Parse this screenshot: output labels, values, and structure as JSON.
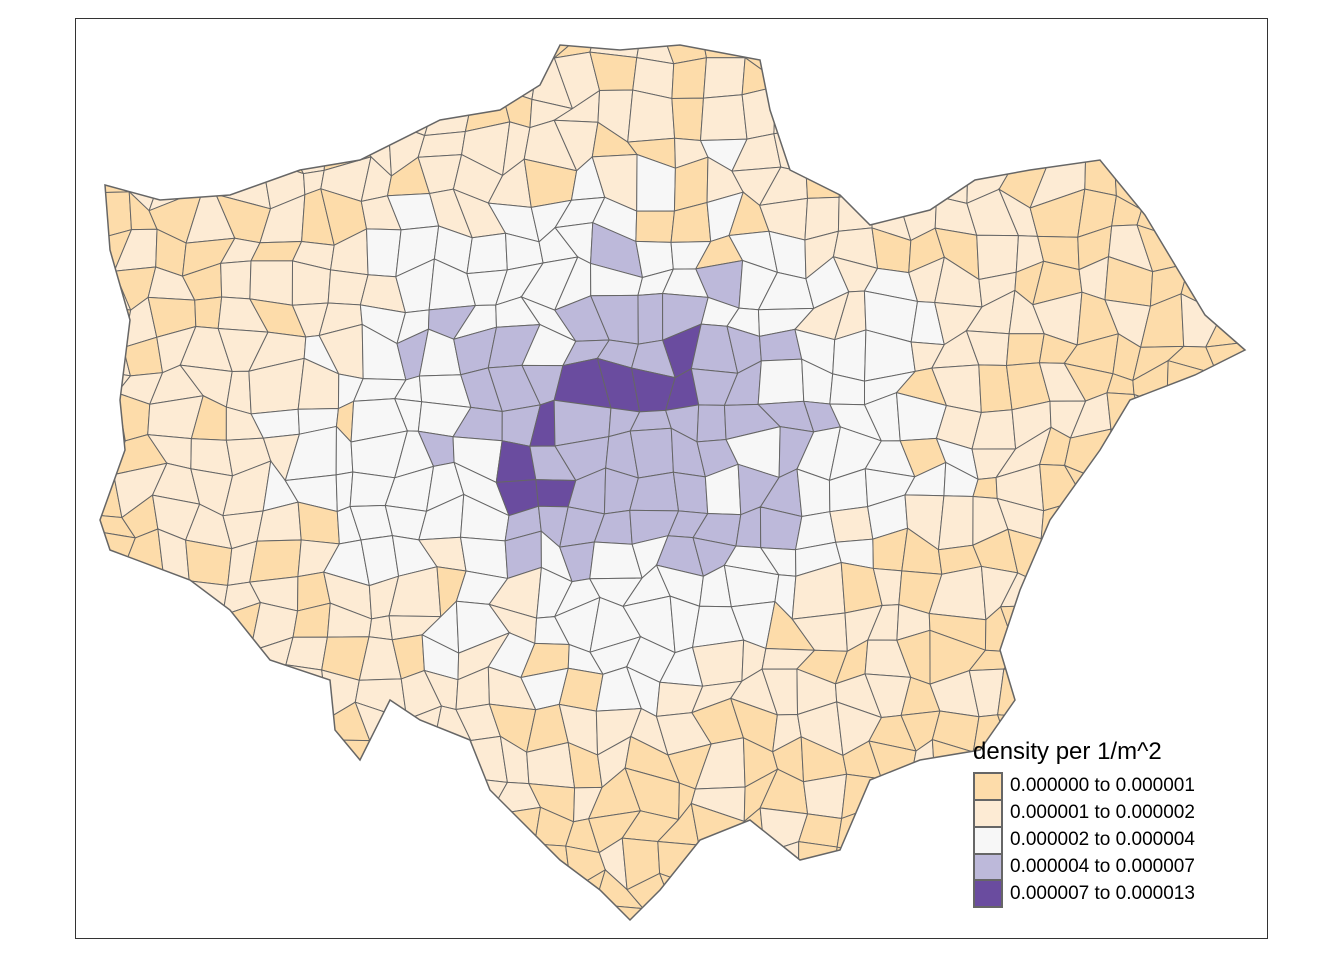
{
  "map": {
    "type": "choropleth",
    "border_color": "#666666",
    "legend": {
      "title": "density per 1/m^2",
      "placement": "bottom-right",
      "classes": [
        {
          "label": "0.000000 to 0.000001",
          "color": "#FDDCAA"
        },
        {
          "label": "0.000001 to 0.000002",
          "color": "#FDEBD4"
        },
        {
          "label": "0.000002 to 0.000004",
          "color": "#F7F7F7"
        },
        {
          "label": "0.000004 to 0.000007",
          "color": "#BDB9DA"
        },
        {
          "label": "0.000007 to 0.000013",
          "color": "#6A4C9F"
        }
      ]
    }
  }
}
